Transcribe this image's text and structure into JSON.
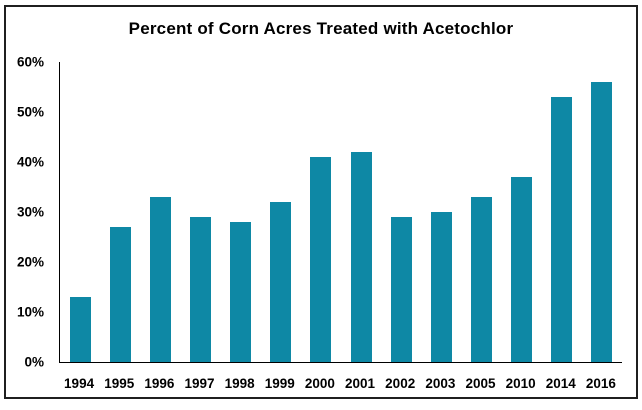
{
  "window": {
    "background_color": "#ffffff",
    "frame_border_color": "#1f1f1f",
    "axis_line_color": "#000000",
    "text_color": "#000000"
  },
  "chart_data": {
    "type": "bar",
    "title": "Percent of Corn Acres Treated with Acetochlor",
    "categories": [
      "1994",
      "1995",
      "1996",
      "1997",
      "1998",
      "1999",
      "2000",
      "2001",
      "2002",
      "2003",
      "2005",
      "2010",
      "2014",
      "2016"
    ],
    "values": [
      13,
      27,
      33,
      29,
      28,
      32,
      41,
      42,
      29,
      30,
      33,
      37,
      53,
      56
    ],
    "value_unit": "%",
    "xlabel": "",
    "ylabel": "",
    "ylim": [
      0,
      60
    ],
    "yticks": [
      {
        "label": "0%",
        "value": 0
      },
      {
        "label": "10%",
        "value": 10
      },
      {
        "label": "20%",
        "value": 20
      },
      {
        "label": "30%",
        "value": 30
      },
      {
        "label": "40%",
        "value": 40
      },
      {
        "label": "50%",
        "value": 50
      },
      {
        "label": "60%",
        "value": 60
      }
    ],
    "grid": false,
    "legend": false,
    "bar_color": "#0e88a5"
  }
}
